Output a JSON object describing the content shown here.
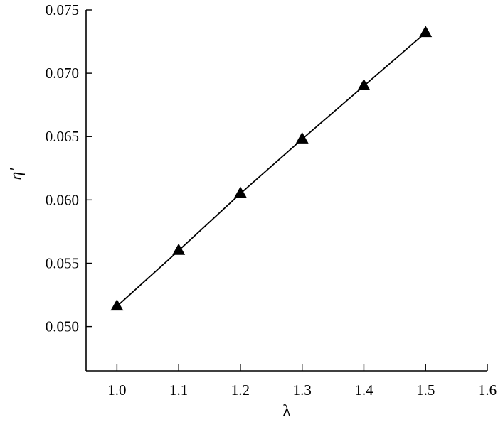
{
  "chart_data": {
    "type": "line",
    "title": "",
    "xlabel": "λ",
    "ylabel": "η′",
    "xlim": [
      0.95,
      1.6
    ],
    "ylim": [
      0.0465,
      0.075
    ],
    "x_ticks": [
      1.0,
      1.1,
      1.2,
      1.3,
      1.4,
      1.5,
      1.6
    ],
    "x_tick_labels": [
      "1.0",
      "1.1",
      "1.2",
      "1.3",
      "1.4",
      "1.5",
      "1.6"
    ],
    "y_ticks": [
      0.05,
      0.055,
      0.06,
      0.065,
      0.07,
      0.075
    ],
    "y_tick_labels": [
      "0.050",
      "0.055",
      "0.060",
      "0.065",
      "0.070",
      "0.075"
    ],
    "grid": false,
    "legend": "none",
    "series": [
      {
        "marker": "triangle",
        "color": "#000000",
        "x": [
          1.0,
          1.1,
          1.2,
          1.3,
          1.4,
          1.5
        ],
        "y": [
          0.0516,
          0.056,
          0.0605,
          0.0648,
          0.069,
          0.0732
        ]
      }
    ]
  }
}
